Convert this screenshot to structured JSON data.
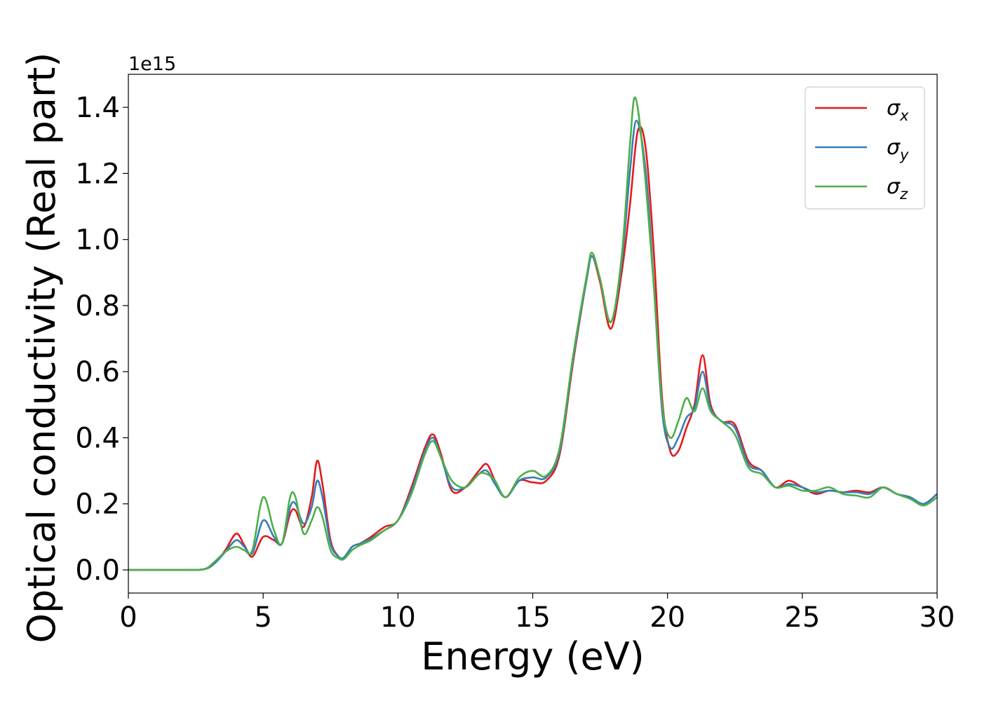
{
  "chart_data": {
    "type": "line",
    "xlabel": "Energy (eV)",
    "ylabel": "Optical conductivity (Real part)",
    "y_offset_text": "1e15",
    "xlim": [
      0,
      30
    ],
    "ylim": [
      -0.07,
      1.5
    ],
    "xticks": [
      0,
      5,
      10,
      15,
      20,
      25,
      30
    ],
    "yticks": [
      0.0,
      0.2,
      0.4,
      0.6,
      0.8,
      1.0,
      1.2,
      1.4
    ],
    "xtick_labels": [
      "0",
      "5",
      "10",
      "15",
      "20",
      "25",
      "30"
    ],
    "ytick_labels": [
      "0.0",
      "0.2",
      "0.4",
      "0.6",
      "0.8",
      "1.0",
      "1.2",
      "1.4"
    ],
    "grid": false,
    "legend_position": "top-right",
    "legend": [
      {
        "symbol": "σ",
        "sub": "x",
        "color": "#e41a1c"
      },
      {
        "symbol": "σ",
        "sub": "y",
        "color": "#377eb8"
      },
      {
        "symbol": "σ",
        "sub": "z",
        "color": "#4daf4a"
      }
    ],
    "series": [
      {
        "name": "σx",
        "color": "#e41a1c",
        "x": [
          0,
          1,
          2,
          2.8,
          3.2,
          3.6,
          4.0,
          4.3,
          4.6,
          5.0,
          5.4,
          5.7,
          6.0,
          6.2,
          6.5,
          6.8,
          7.0,
          7.2,
          7.5,
          7.8,
          8.0,
          8.3,
          8.6,
          9.0,
          9.5,
          10.0,
          10.5,
          11.0,
          11.3,
          11.6,
          12.0,
          12.5,
          13.0,
          13.3,
          13.6,
          14.0,
          14.5,
          15.0,
          15.5,
          16.0,
          16.5,
          17.0,
          17.2,
          17.5,
          17.9,
          18.3,
          18.6,
          18.9,
          19.2,
          19.5,
          19.8,
          20.1,
          20.4,
          20.7,
          21.0,
          21.3,
          21.6,
          22.0,
          22.5,
          23.0,
          23.5,
          24.0,
          24.5,
          25.0,
          25.5,
          26.0,
          26.5,
          27.0,
          27.5,
          28.0,
          28.5,
          29.0,
          29.5,
          30.0
        ],
        "y": [
          0,
          0,
          0,
          0.002,
          0.02,
          0.06,
          0.11,
          0.075,
          0.04,
          0.1,
          0.09,
          0.08,
          0.17,
          0.18,
          0.13,
          0.22,
          0.33,
          0.26,
          0.09,
          0.04,
          0.035,
          0.07,
          0.08,
          0.1,
          0.13,
          0.15,
          0.25,
          0.37,
          0.41,
          0.35,
          0.24,
          0.25,
          0.3,
          0.32,
          0.27,
          0.22,
          0.27,
          0.265,
          0.27,
          0.35,
          0.63,
          0.88,
          0.95,
          0.87,
          0.73,
          0.9,
          1.1,
          1.33,
          1.27,
          0.95,
          0.52,
          0.36,
          0.36,
          0.43,
          0.5,
          0.65,
          0.5,
          0.45,
          0.44,
          0.33,
          0.3,
          0.25,
          0.27,
          0.25,
          0.23,
          0.24,
          0.235,
          0.24,
          0.235,
          0.25,
          0.23,
          0.22,
          0.2,
          0.23
        ]
      },
      {
        "name": "σy",
        "color": "#377eb8",
        "x": [
          0,
          1,
          2,
          2.8,
          3.2,
          3.6,
          4.0,
          4.3,
          4.6,
          5.0,
          5.4,
          5.7,
          6.0,
          6.2,
          6.5,
          6.8,
          7.0,
          7.2,
          7.5,
          7.8,
          8.0,
          8.3,
          8.6,
          9.0,
          9.5,
          10.0,
          10.5,
          11.0,
          11.3,
          11.6,
          12.0,
          12.5,
          13.0,
          13.3,
          13.6,
          14.0,
          14.5,
          15.0,
          15.5,
          16.0,
          16.5,
          17.0,
          17.2,
          17.5,
          17.9,
          18.3,
          18.6,
          18.85,
          19.2,
          19.5,
          19.8,
          20.1,
          20.4,
          20.7,
          21.0,
          21.3,
          21.6,
          22.0,
          22.5,
          23.0,
          23.5,
          24.0,
          24.5,
          25.0,
          25.5,
          26.0,
          26.5,
          27.0,
          27.5,
          28.0,
          28.5,
          29.0,
          29.5,
          30.0
        ],
        "y": [
          0,
          0,
          0,
          0.002,
          0.02,
          0.055,
          0.09,
          0.07,
          0.05,
          0.15,
          0.1,
          0.08,
          0.19,
          0.2,
          0.14,
          0.19,
          0.27,
          0.22,
          0.08,
          0.04,
          0.038,
          0.07,
          0.08,
          0.095,
          0.12,
          0.15,
          0.24,
          0.36,
          0.4,
          0.34,
          0.25,
          0.25,
          0.29,
          0.3,
          0.26,
          0.22,
          0.27,
          0.28,
          0.28,
          0.36,
          0.64,
          0.88,
          0.95,
          0.88,
          0.75,
          0.93,
          1.2,
          1.36,
          1.2,
          0.85,
          0.48,
          0.37,
          0.4,
          0.46,
          0.49,
          0.6,
          0.49,
          0.45,
          0.43,
          0.32,
          0.3,
          0.25,
          0.26,
          0.25,
          0.235,
          0.24,
          0.235,
          0.235,
          0.23,
          0.25,
          0.23,
          0.22,
          0.2,
          0.23
        ]
      },
      {
        "name": "σz",
        "color": "#4daf4a",
        "x": [
          0,
          1,
          2,
          2.8,
          3.2,
          3.6,
          4.0,
          4.3,
          4.6,
          5.0,
          5.4,
          5.7,
          6.0,
          6.2,
          6.5,
          6.8,
          7.0,
          7.2,
          7.5,
          7.8,
          8.0,
          8.3,
          8.6,
          9.0,
          9.5,
          10.0,
          10.5,
          11.0,
          11.3,
          11.6,
          12.0,
          12.5,
          13.0,
          13.3,
          13.6,
          14.0,
          14.5,
          15.0,
          15.5,
          16.0,
          16.5,
          17.0,
          17.2,
          17.5,
          17.9,
          18.3,
          18.6,
          18.8,
          19.1,
          19.5,
          19.8,
          20.1,
          20.4,
          20.7,
          21.0,
          21.3,
          21.6,
          22.0,
          22.5,
          23.0,
          23.5,
          24.0,
          24.5,
          25.0,
          25.5,
          26.0,
          26.5,
          27.0,
          27.5,
          28.0,
          28.5,
          29.0,
          29.5,
          30.0
        ],
        "y": [
          0,
          0,
          0,
          0.002,
          0.025,
          0.055,
          0.07,
          0.06,
          0.06,
          0.22,
          0.12,
          0.08,
          0.22,
          0.22,
          0.11,
          0.15,
          0.19,
          0.16,
          0.06,
          0.035,
          0.033,
          0.06,
          0.075,
          0.09,
          0.12,
          0.15,
          0.23,
          0.35,
          0.39,
          0.34,
          0.27,
          0.25,
          0.29,
          0.29,
          0.27,
          0.22,
          0.28,
          0.3,
          0.285,
          0.37,
          0.65,
          0.89,
          0.96,
          0.88,
          0.75,
          0.95,
          1.28,
          1.43,
          1.25,
          0.85,
          0.5,
          0.4,
          0.45,
          0.52,
          0.48,
          0.55,
          0.48,
          0.45,
          0.41,
          0.31,
          0.29,
          0.25,
          0.255,
          0.24,
          0.24,
          0.25,
          0.23,
          0.225,
          0.22,
          0.25,
          0.23,
          0.215,
          0.195,
          0.22
        ]
      }
    ]
  }
}
